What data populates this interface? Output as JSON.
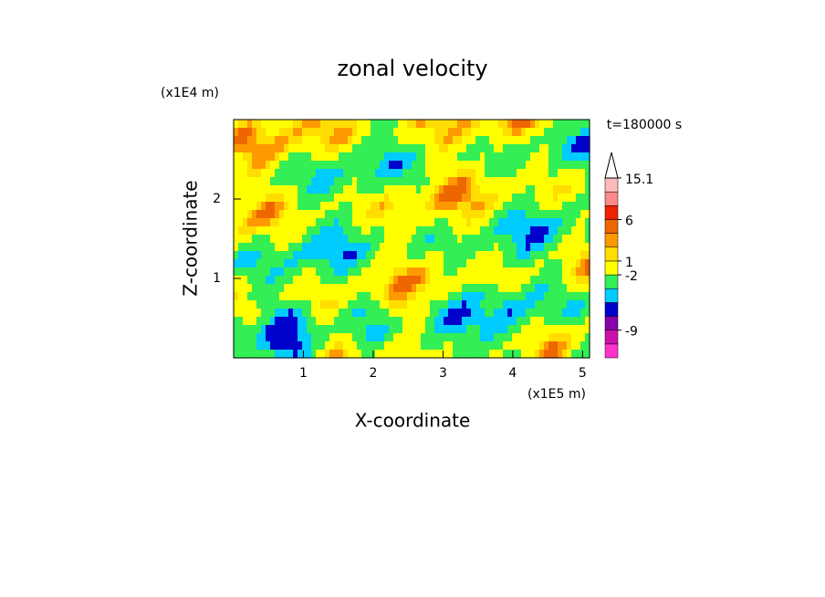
{
  "chart_data": {
    "type": "contour",
    "title": "zonal velocity",
    "x_label": "X-coordinate",
    "y_label": "Z-coordinate",
    "x_unit": "(x1E5 m)",
    "y_unit": "(x1E4 m)",
    "annotation": "t=180000 s",
    "xlim": [
      0,
      5.1
    ],
    "xticks": [
      1,
      2,
      3,
      4,
      5
    ],
    "ylim": [
      0,
      3
    ],
    "yticks": [
      1,
      2
    ],
    "colorbar": {
      "colors": [
        "#ff33cc",
        "#cc11aa",
        "#8800aa",
        "#0000cc",
        "#00ccff",
        "#33ee55",
        "#ffff00",
        "#ffdd00",
        "#ff9900",
        "#ee6600",
        "#ee2200",
        "#ff8888",
        "#ffbbbb"
      ],
      "ticks": [
        -9,
        -2,
        1,
        6,
        15.1
      ]
    }
  }
}
